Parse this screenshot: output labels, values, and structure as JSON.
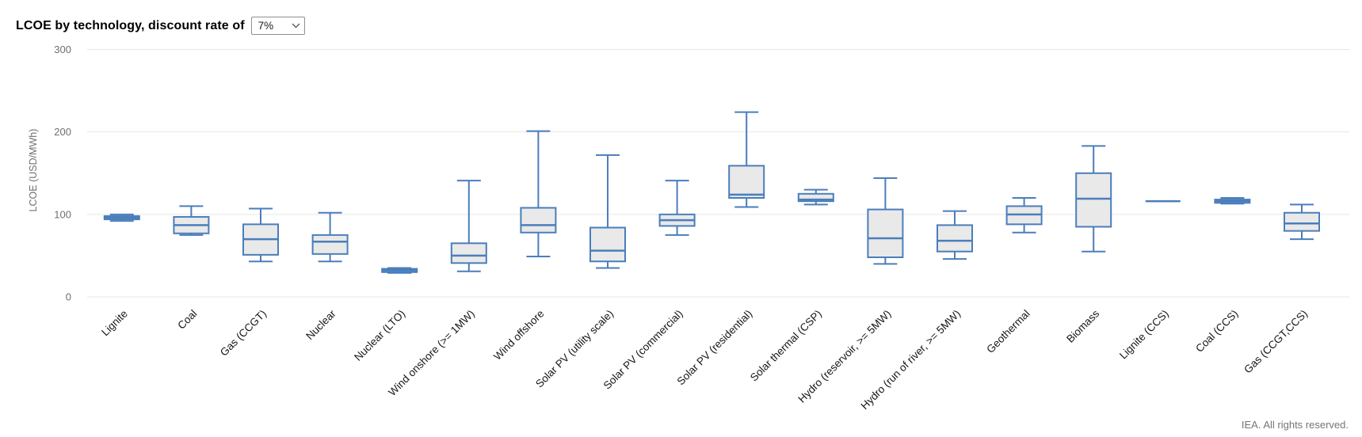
{
  "header": {
    "title": "LCOE by technology, discount rate of",
    "discount_select": {
      "value": "7%",
      "options": [
        "7%"
      ]
    }
  },
  "footer": {
    "credit": "IEA. All rights reserved."
  },
  "chart_data": {
    "type": "boxplot",
    "title": "LCOE by technology, discount rate of 7%",
    "xlabel": "",
    "ylabel": "LCOE (USD/MWh)",
    "ylim": [
      0,
      300
    ],
    "yticks": [
      0,
      100,
      200,
      300
    ],
    "grid": true,
    "legend": "none",
    "categories": [
      "Lignite",
      "Coal",
      "Gas (CCGT)",
      "Nuclear",
      "Nuclear (LTO)",
      "Wind onshore (>= 1MW)",
      "Wind offshore",
      "Solar PV (utility scale)",
      "Solar PV (commercial)",
      "Solar PV (residential)",
      "Solar thermal (CSP)",
      "Hydro (reservoir, >= 5MW)",
      "Hydro (run of river, >= 5MW)",
      "Geothermal",
      "Biomass",
      "Lignite (CCS)",
      "Coal (CCS)",
      "Gas (CCGT,CCS)"
    ],
    "series": [
      {
        "name": "LCOE (USD/MWh)",
        "points": [
          {
            "min": 92,
            "q1": 94,
            "median": 96,
            "q3": 98,
            "max": 100
          },
          {
            "min": 75,
            "q1": 77,
            "median": 87,
            "q3": 97,
            "max": 110
          },
          {
            "min": 43,
            "q1": 51,
            "median": 70,
            "q3": 88,
            "max": 107
          },
          {
            "min": 43,
            "q1": 52,
            "median": 67,
            "q3": 75,
            "max": 102
          },
          {
            "min": 29,
            "q1": 30,
            "median": 32,
            "q3": 34,
            "max": 35
          },
          {
            "min": 31,
            "q1": 41,
            "median": 50,
            "q3": 65,
            "max": 141
          },
          {
            "min": 49,
            "q1": 78,
            "median": 87,
            "q3": 108,
            "max": 201
          },
          {
            "min": 35,
            "q1": 43,
            "median": 56,
            "q3": 84,
            "max": 172
          },
          {
            "min": 75,
            "q1": 86,
            "median": 93,
            "q3": 100,
            "max": 141
          },
          {
            "min": 109,
            "q1": 120,
            "median": 124,
            "q3": 159,
            "max": 224
          },
          {
            "min": 112,
            "q1": 116,
            "median": 118,
            "q3": 125,
            "max": 130
          },
          {
            "min": 40,
            "q1": 48,
            "median": 71,
            "q3": 106,
            "max": 144
          },
          {
            "min": 46,
            "q1": 55,
            "median": 68,
            "q3": 87,
            "max": 104
          },
          {
            "min": 78,
            "q1": 88,
            "median": 100,
            "q3": 110,
            "max": 120
          },
          {
            "min": 55,
            "q1": 85,
            "median": 119,
            "q3": 150,
            "max": 183
          },
          {
            "min": 116,
            "q1": 116,
            "median": 116,
            "q3": 116,
            "max": 116
          },
          {
            "min": 113,
            "q1": 114,
            "median": 116,
            "q3": 118,
            "max": 120
          },
          {
            "min": 70,
            "q1": 80,
            "median": 89,
            "q3": 102,
            "max": 112
          }
        ]
      }
    ],
    "colors": {
      "box_stroke": "#4a7ebb",
      "box_fill": "#e9e9e9",
      "gridline": "#e7e7ea",
      "axis_label": "#6f6f74",
      "category_label": "#161616"
    }
  }
}
